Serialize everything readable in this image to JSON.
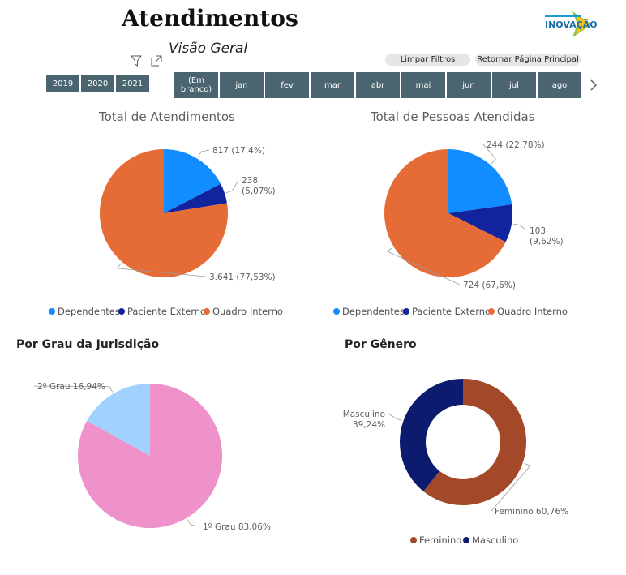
{
  "header": {
    "title": "Atendimentos",
    "subtitle": "Visão Geral",
    "logo_text": "INOVAÇÃO",
    "buttons": {
      "clear": "Limpar Filtros",
      "home": "Retornar Página Principal"
    }
  },
  "year_slicer": [
    "2019",
    "2020",
    "2021"
  ],
  "month_slicer": [
    "(Em branco)",
    "jan",
    "fev",
    "mar",
    "abr",
    "mai",
    "jun",
    "jul",
    "ago"
  ],
  "icons": {
    "filter": "filter-icon",
    "expand": "expand-icon",
    "next": "chevron-right-icon"
  },
  "colors": {
    "slicer": "#4a6570",
    "dependentes": "#118dff",
    "paciente_externo": "#12239e",
    "quadro_interno": "#e66c37",
    "primeiro_grau": "#ee92c9",
    "segundo_grau": "#a0d1ff",
    "feminino": "#a3492a",
    "masculino": "#0d1b6e"
  },
  "chart_data": [
    {
      "type": "pie",
      "title": "Total de Atendimentos",
      "categories": [
        "Dependentes",
        "Paciente Externo",
        "Quadro Interno"
      ],
      "values": [
        817,
        238,
        3641
      ],
      "labels": [
        "817 (17,4%)",
        "238 (5,07%)",
        "3.641 (77,53%)"
      ],
      "legend": "bottom"
    },
    {
      "type": "pie",
      "title": "Total de Pessoas Atendidas",
      "categories": [
        "Dependentes",
        "Paciente Externo",
        "Quadro Interno"
      ],
      "values": [
        244,
        103,
        724
      ],
      "labels": [
        "244 (22,78%)",
        "103 (9,62%)",
        "724 (67,6%)"
      ],
      "legend": "bottom"
    },
    {
      "type": "pie",
      "title": "Por Grau da Jurisdição",
      "categories": [
        "1º Grau",
        "2º Grau"
      ],
      "values": [
        83.06,
        16.94
      ],
      "labels": [
        "1º Grau 83,06%",
        "2º Grau 16,94%"
      ]
    },
    {
      "type": "donut",
      "title": "Por Gênero",
      "categories": [
        "Feminino",
        "Masculino"
      ],
      "values": [
        60.76,
        39.24
      ],
      "labels": [
        "Feminino 60,76%",
        "Masculino 39,24%"
      ],
      "legend": "bottom"
    }
  ]
}
